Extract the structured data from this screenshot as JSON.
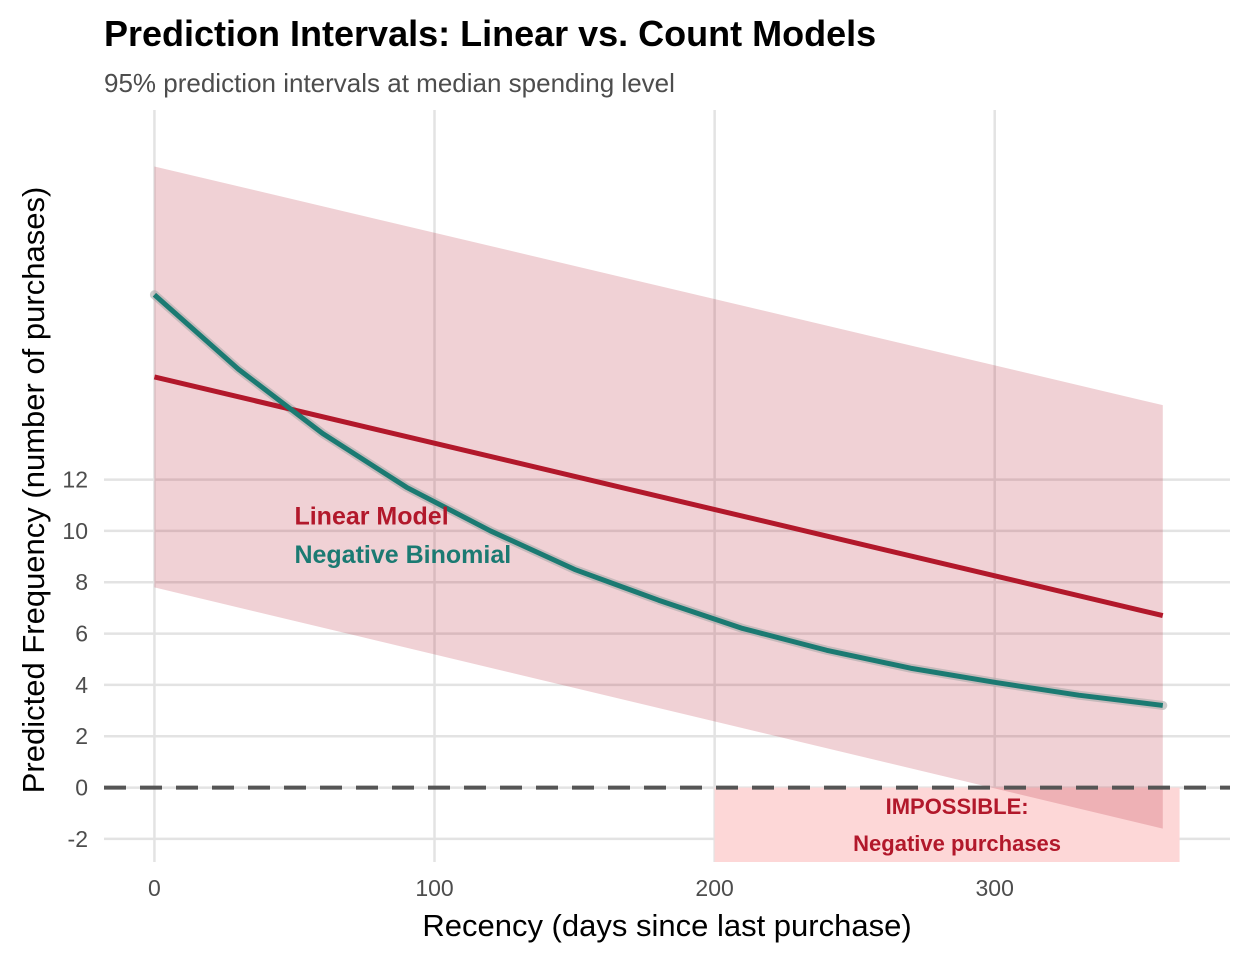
{
  "chart_data": {
    "type": "line",
    "title": "Prediction Intervals: Linear vs. Count Models",
    "subtitle": "95% prediction intervals at median spending level",
    "xlabel": "Recency (days since last purchase)",
    "ylabel": "Predicted Frequency (number of purchases)",
    "xlim": [
      -18,
      384
    ],
    "ylim": [
      -2.9,
      26.4
    ],
    "x_ticks": [
      0,
      100,
      200,
      300
    ],
    "x_tick_labels": [
      "0",
      "100",
      "200",
      "300"
    ],
    "y_ticks": [
      -2,
      0,
      2,
      4,
      6,
      8,
      10,
      12
    ],
    "y_tick_labels": [
      "-2",
      "0",
      "2",
      "4",
      "6",
      "8",
      "10",
      "12"
    ],
    "zero_reference": 0,
    "series": [
      {
        "name": "Linear Model",
        "label": "Linear Model",
        "color": "#b2182b",
        "x": [
          0,
          360
        ],
        "y": [
          16.0,
          6.7
        ],
        "interval": {
          "x": [
            0,
            360
          ],
          "lower": [
            7.8,
            -1.6
          ],
          "upper": [
            24.2,
            14.9
          ],
          "fill": "#b2182b",
          "opacity": 0.2
        }
      },
      {
        "name": "Negative Binomial",
        "label": "Negative Binomial",
        "color": "#1b7a72",
        "x": [
          0,
          30,
          60,
          90,
          120,
          150,
          180,
          210,
          240,
          270,
          300,
          330,
          360
        ],
        "y": [
          19.2,
          16.3,
          13.8,
          11.7,
          10.0,
          8.5,
          7.3,
          6.2,
          5.35,
          4.65,
          4.1,
          3.6,
          3.2
        ],
        "band_color": "#aaaaaa"
      }
    ],
    "impossible_region": {
      "x_range": [
        200,
        366
      ],
      "y_range": [
        -2.9,
        0
      ],
      "fill": "#fdd7d7",
      "line1": "IMPOSSIBLE:",
      "line2": "Negative purchases",
      "text_color": "#b2182b"
    },
    "labels_position": {
      "x": 50,
      "y1": 10.6,
      "y2": 9.1
    }
  }
}
